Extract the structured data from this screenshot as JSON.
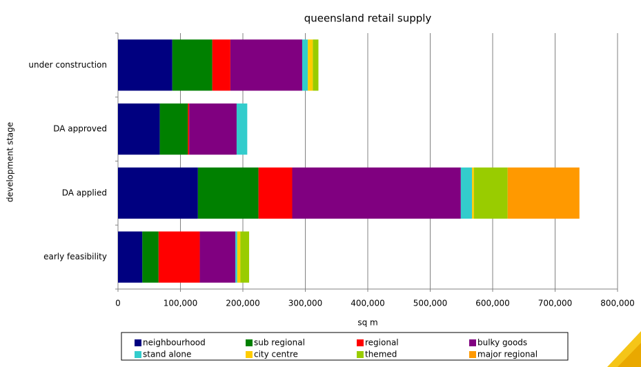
{
  "chart_data": {
    "type": "stacked-bar-horizontal",
    "title": "queensland retail supply",
    "x_label": "sq m",
    "y_label": "development stage",
    "categories": [
      "under construction",
      "DA approved",
      "DA applied",
      "early feasibility"
    ],
    "series": [
      {
        "name": "neighbourhood",
        "color": "#000080",
        "values": [
          87000,
          67000,
          128000,
          39000
        ]
      },
      {
        "name": "sub regional",
        "color": "#008000",
        "values": [
          64000,
          45000,
          97000,
          26000
        ]
      },
      {
        "name": "regional",
        "color": "#ff0000",
        "values": [
          29000,
          2000,
          54000,
          66000
        ]
      },
      {
        "name": "bulky goods",
        "color": "#800080",
        "values": [
          115000,
          76000,
          270000,
          57000
        ]
      },
      {
        "name": "stand alone",
        "color": "#33cccc",
        "values": [
          9000,
          17000,
          18000,
          3000
        ]
      },
      {
        "name": "city centre",
        "color": "#ffcc00",
        "values": [
          8000,
          0,
          3000,
          5000
        ]
      },
      {
        "name": "themed",
        "color": "#99cc00",
        "values": [
          9000,
          0,
          54000,
          14000
        ]
      },
      {
        "name": "major regional",
        "color": "#ff9900",
        "values": [
          0,
          0,
          115000,
          0
        ]
      }
    ],
    "xlim": [
      0,
      800000
    ],
    "xticks": [
      0,
      {
        "value": 100000,
        "label": "100,000"
      },
      {
        "value": 200000,
        "label": "200,000"
      },
      {
        "value": 300000,
        "label": "300,000"
      },
      {
        "value": 400000,
        "label": "400,000"
      },
      {
        "value": 500000,
        "label": "500,000"
      },
      {
        "value": 600000,
        "label": "600,000"
      },
      {
        "value": 700000,
        "label": "700,000"
      },
      {
        "value": 800000,
        "label": "800,000"
      }
    ],
    "grid": true
  }
}
